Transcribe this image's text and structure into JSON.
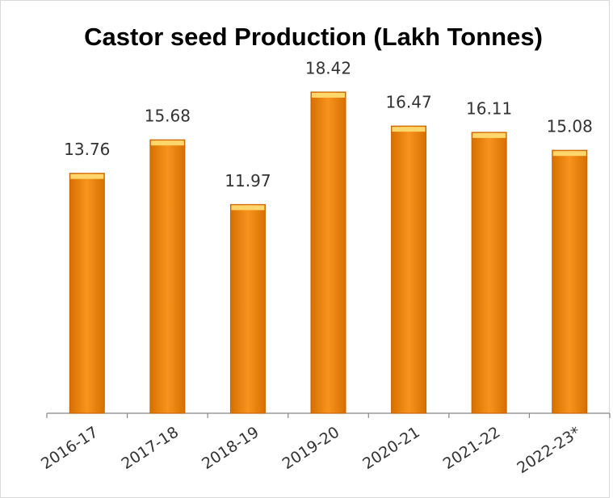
{
  "chart_data": {
    "type": "bar",
    "title": "Castor seed Production (Lakh Tonnes)",
    "categories": [
      "2016-17",
      "2017-18",
      "2018-19",
      "2019-20",
      "2020-21",
      "2021-22",
      "2022-23*"
    ],
    "values": [
      13.76,
      15.68,
      11.97,
      18.42,
      16.47,
      16.11,
      15.08
    ],
    "color": "#f7941d"
  }
}
